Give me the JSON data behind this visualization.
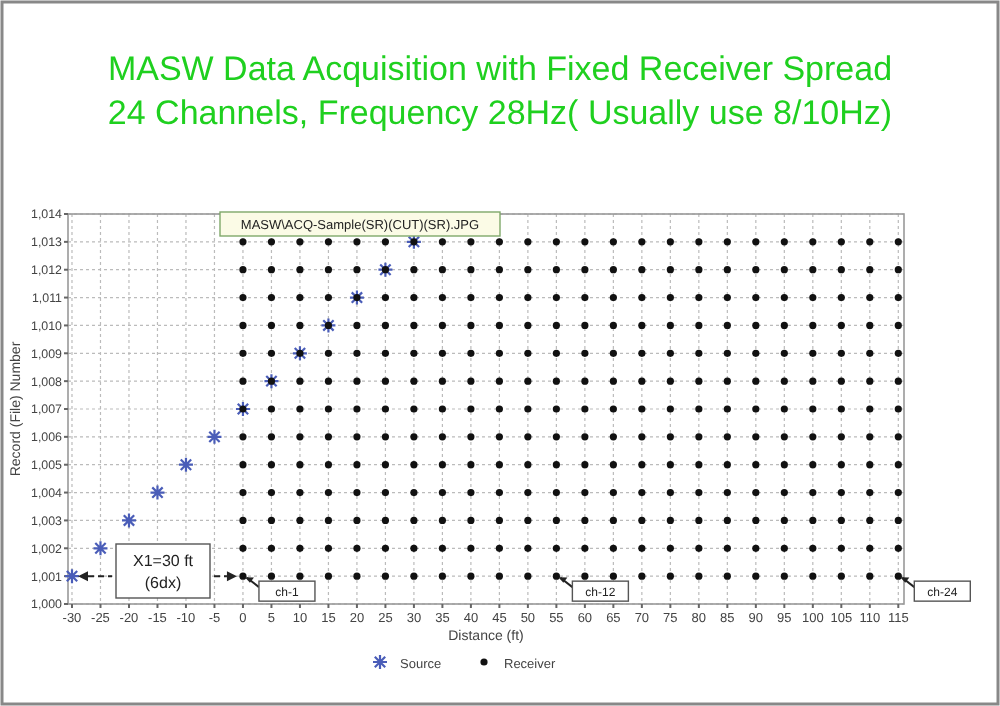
{
  "chart_data": {
    "type": "scatter",
    "title": "MASW Data Acquisition with Fixed Receiver Spread",
    "subtitle": "24 Channels, Frequency 28Hz( Usually use 8/10Hz)",
    "xlabel": "Distance (ft)",
    "ylabel": "Record (File) Number",
    "xlim": [
      -30.7,
      116
    ],
    "ylim": [
      1000,
      1014
    ],
    "xticks": [
      -30,
      -25,
      -20,
      -15,
      -10,
      -5,
      0,
      5,
      10,
      15,
      20,
      25,
      30,
      35,
      40,
      45,
      50,
      55,
      60,
      65,
      70,
      75,
      80,
      85,
      90,
      95,
      100,
      105,
      110,
      115
    ],
    "yticks": [
      {
        "value": 1000,
        "label": "1,000"
      },
      {
        "value": 1001,
        "label": "1,001"
      },
      {
        "value": 1002,
        "label": "1,002"
      },
      {
        "value": 1003,
        "label": "1,003"
      },
      {
        "value": 1004,
        "label": "1,004"
      },
      {
        "value": 1005,
        "label": "1,005"
      },
      {
        "value": 1006,
        "label": "1,006"
      },
      {
        "value": 1007,
        "label": "1,007"
      },
      {
        "value": 1008,
        "label": "1,008"
      },
      {
        "value": 1009,
        "label": "1,009"
      },
      {
        "value": 1010,
        "label": "1,010"
      },
      {
        "value": 1011,
        "label": "1,011"
      },
      {
        "value": 1012,
        "label": "1,012"
      },
      {
        "value": 1013,
        "label": "1,013"
      },
      {
        "value": 1014,
        "label": "1,014"
      }
    ],
    "grid": true,
    "legend": "bottom",
    "annotations": [
      "MASW\\ACQ-Sample(SR)(CUT)(SR).JPG",
      "X1=30 ft\n(6dx)",
      {
        "text": "ch-1",
        "x": 0,
        "y": 1001
      },
      {
        "text": "ch-12",
        "x": 55,
        "y": 1001
      },
      {
        "text": "ch-24",
        "x": 115,
        "y": 1001
      }
    ],
    "series": [
      {
        "name": "Source",
        "color": "#4a5db8",
        "marker": "cross",
        "x": [
          -30,
          -25,
          -20,
          -15,
          -10,
          -5,
          0,
          5,
          10,
          15,
          20,
          25,
          30
        ],
        "values": [
          1001,
          1002,
          1003,
          1004,
          1005,
          1006,
          1007,
          1008,
          1009,
          1010,
          1011,
          1012,
          1013
        ]
      },
      {
        "name": "Receiver",
        "color": "#111111",
        "marker": "circle",
        "x": [
          0,
          5,
          10,
          15,
          20,
          25,
          30,
          35,
          40,
          45,
          50,
          55,
          60,
          65,
          70,
          75,
          80,
          85,
          90,
          95,
          100,
          105,
          110,
          115,
          0,
          5,
          10,
          15,
          20,
          25,
          30,
          35,
          40,
          45,
          50,
          55,
          60,
          65,
          70,
          75,
          80,
          85,
          90,
          95,
          100,
          105,
          110,
          115,
          0,
          5,
          10,
          15,
          20,
          25,
          30,
          35,
          40,
          45,
          50,
          55,
          60,
          65,
          70,
          75,
          80,
          85,
          90,
          95,
          100,
          105,
          110,
          115,
          0,
          5,
          10,
          15,
          20,
          25,
          30,
          35,
          40,
          45,
          50,
          55,
          60,
          65,
          70,
          75,
          80,
          85,
          90,
          95,
          100,
          105,
          110,
          115,
          0,
          5,
          10,
          15,
          20,
          25,
          30,
          35,
          40,
          45,
          50,
          55,
          60,
          65,
          70,
          75,
          80,
          85,
          90,
          95,
          100,
          105,
          110,
          115,
          0,
          5,
          10,
          15,
          20,
          25,
          30,
          35,
          40,
          45,
          50,
          55,
          60,
          65,
          70,
          75,
          80,
          85,
          90,
          95,
          100,
          105,
          110,
          115,
          0,
          5,
          10,
          15,
          20,
          25,
          30,
          35,
          40,
          45,
          50,
          55,
          60,
          65,
          70,
          75,
          80,
          85,
          90,
          95,
          100,
          105,
          110,
          115,
          0,
          5,
          10,
          15,
          20,
          25,
          30,
          35,
          40,
          45,
          50,
          55,
          60,
          65,
          70,
          75,
          80,
          85,
          90,
          95,
          100,
          105,
          110,
          115,
          0,
          5,
          10,
          15,
          20,
          25,
          30,
          35,
          40,
          45,
          50,
          55,
          60,
          65,
          70,
          75,
          80,
          85,
          90,
          95,
          100,
          105,
          110,
          115,
          0,
          5,
          10,
          15,
          20,
          25,
          30,
          35,
          40,
          45,
          50,
          55,
          60,
          65,
          70,
          75,
          80,
          85,
          90,
          95,
          100,
          105,
          110,
          115,
          0,
          5,
          10,
          15,
          20,
          25,
          30,
          35,
          40,
          45,
          50,
          55,
          60,
          65,
          70,
          75,
          80,
          85,
          90,
          95,
          100,
          105,
          110,
          115,
          0,
          5,
          10,
          15,
          20,
          25,
          30,
          35,
          40,
          45,
          50,
          55,
          60,
          65,
          70,
          75,
          80,
          85,
          90,
          95,
          100,
          105,
          110,
          115,
          0,
          5,
          10,
          15,
          20,
          25,
          30,
          35,
          40,
          45,
          50,
          55,
          60,
          65,
          70,
          75,
          80,
          85,
          90,
          95,
          100,
          105,
          110,
          115
        ],
        "values": [
          1001,
          1001,
          1001,
          1001,
          1001,
          1001,
          1001,
          1001,
          1001,
          1001,
          1001,
          1001,
          1001,
          1001,
          1001,
          1001,
          1001,
          1001,
          1001,
          1001,
          1001,
          1001,
          1001,
          1001,
          1002,
          1002,
          1002,
          1002,
          1002,
          1002,
          1002,
          1002,
          1002,
          1002,
          1002,
          1002,
          1002,
          1002,
          1002,
          1002,
          1002,
          1002,
          1002,
          1002,
          1002,
          1002,
          1002,
          1002,
          1003,
          1003,
          1003,
          1003,
          1003,
          1003,
          1003,
          1003,
          1003,
          1003,
          1003,
          1003,
          1003,
          1003,
          1003,
          1003,
          1003,
          1003,
          1003,
          1003,
          1003,
          1003,
          1003,
          1003,
          1004,
          1004,
          1004,
          1004,
          1004,
          1004,
          1004,
          1004,
          1004,
          1004,
          1004,
          1004,
          1004,
          1004,
          1004,
          1004,
          1004,
          1004,
          1004,
          1004,
          1004,
          1004,
          1004,
          1004,
          1005,
          1005,
          1005,
          1005,
          1005,
          1005,
          1005,
          1005,
          1005,
          1005,
          1005,
          1005,
          1005,
          1005,
          1005,
          1005,
          1005,
          1005,
          1005,
          1005,
          1005,
          1005,
          1005,
          1005,
          1006,
          1006,
          1006,
          1006,
          1006,
          1006,
          1006,
          1006,
          1006,
          1006,
          1006,
          1006,
          1006,
          1006,
          1006,
          1006,
          1006,
          1006,
          1006,
          1006,
          1006,
          1006,
          1006,
          1006,
          1007,
          1007,
          1007,
          1007,
          1007,
          1007,
          1007,
          1007,
          1007,
          1007,
          1007,
          1007,
          1007,
          1007,
          1007,
          1007,
          1007,
          1007,
          1007,
          1007,
          1007,
          1007,
          1007,
          1007,
          1008,
          1008,
          1008,
          1008,
          1008,
          1008,
          1008,
          1008,
          1008,
          1008,
          1008,
          1008,
          1008,
          1008,
          1008,
          1008,
          1008,
          1008,
          1008,
          1008,
          1008,
          1008,
          1008,
          1008,
          1009,
          1009,
          1009,
          1009,
          1009,
          1009,
          1009,
          1009,
          1009,
          1009,
          1009,
          1009,
          1009,
          1009,
          1009,
          1009,
          1009,
          1009,
          1009,
          1009,
          1009,
          1009,
          1009,
          1009,
          1010,
          1010,
          1010,
          1010,
          1010,
          1010,
          1010,
          1010,
          1010,
          1010,
          1010,
          1010,
          1010,
          1010,
          1010,
          1010,
          1010,
          1010,
          1010,
          1010,
          1010,
          1010,
          1010,
          1010,
          1011,
          1011,
          1011,
          1011,
          1011,
          1011,
          1011,
          1011,
          1011,
          1011,
          1011,
          1011,
          1011,
          1011,
          1011,
          1011,
          1011,
          1011,
          1011,
          1011,
          1011,
          1011,
          1011,
          1011,
          1012,
          1012,
          1012,
          1012,
          1012,
          1012,
          1012,
          1012,
          1012,
          1012,
          1012,
          1012,
          1012,
          1012,
          1012,
          1012,
          1012,
          1012,
          1012,
          1012,
          1012,
          1012,
          1012,
          1012,
          1013,
          1013,
          1013,
          1013,
          1013,
          1013,
          1013,
          1013,
          1013,
          1013,
          1013,
          1013,
          1013,
          1013,
          1013,
          1013,
          1013,
          1013,
          1013,
          1013,
          1013,
          1013,
          1013,
          1013
        ]
      }
    ]
  }
}
